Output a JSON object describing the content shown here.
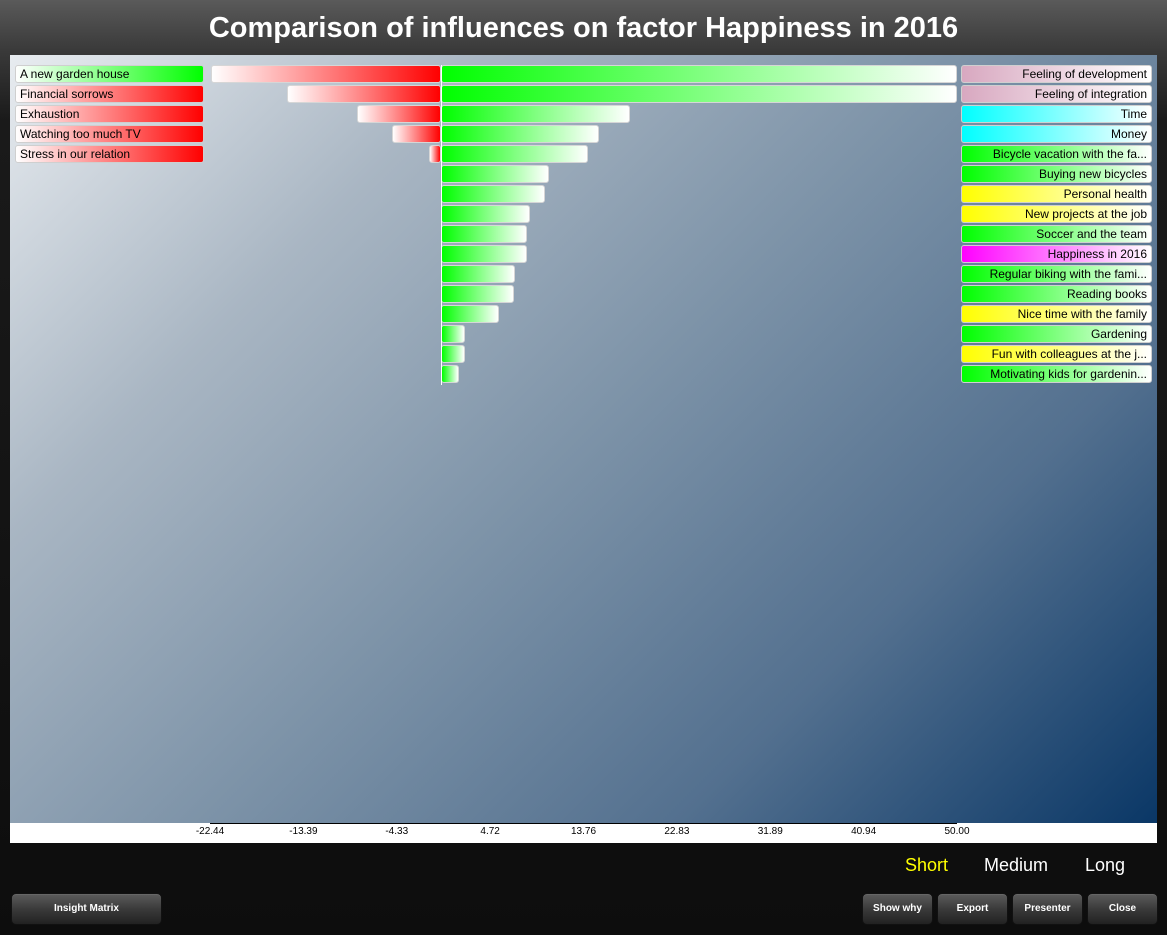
{
  "title": "Comparison of influences on factor Happiness in 2016",
  "chart_data": {
    "type": "bar",
    "title": "Comparison of influences on factor Happiness in 2016",
    "xlim": [
      -22.44,
      50.0
    ],
    "ticks": [
      "-22.44",
      "-13.39",
      "-4.33",
      "4.72",
      "13.76",
      "22.83",
      "31.89",
      "40.94",
      "50.00"
    ],
    "negative_labels": [
      {
        "label": "A new garden house",
        "color": "#00ff00"
      },
      {
        "label": "Financial sorrows",
        "color": "#ff0000"
      },
      {
        "label": "Exhaustion",
        "color": "#ff0000"
      },
      {
        "label": "Watching too much TV",
        "color": "#ff0000"
      },
      {
        "label": "Stress in our relation",
        "color": "#ff0000"
      }
    ],
    "negative_values": [
      -22.3,
      -15.0,
      -8.2,
      -4.8,
      -1.2
    ],
    "positive_labels": [
      {
        "label": "Feeling of development",
        "color": "#d8a8c0"
      },
      {
        "label": "Feeling of integration",
        "color": "#d8a8c0"
      },
      {
        "label": "Time",
        "color": "#00ffff"
      },
      {
        "label": "Money",
        "color": "#00ffff"
      },
      {
        "label": "Bicycle vacation with the fa...",
        "color": "#00ff00"
      },
      {
        "label": "Buying new bicycles",
        "color": "#00ff00"
      },
      {
        "label": "Personal health",
        "color": "#ffff00"
      },
      {
        "label": "New projects at the job",
        "color": "#ffff00"
      },
      {
        "label": "Soccer and the team",
        "color": "#00ff00"
      },
      {
        "label": "Happiness in 2016",
        "color": "#ff00ff"
      },
      {
        "label": "Regular biking with the fami...",
        "color": "#00ff00"
      },
      {
        "label": "Reading books",
        "color": "#00ff00"
      },
      {
        "label": "Nice time with the family",
        "color": "#ffff00"
      },
      {
        "label": "Gardening",
        "color": "#00ff00"
      },
      {
        "label": "Fun with colleagues at the j...",
        "color": "#ffff00"
      },
      {
        "label": "Motivating kids for gardenin...",
        "color": "#00ff00"
      }
    ],
    "positive_values": [
      50.0,
      50.0,
      18.3,
      15.3,
      14.2,
      10.4,
      10.0,
      8.6,
      8.3,
      8.3,
      7.1,
      7.0,
      5.6,
      2.3,
      2.3,
      1.7
    ],
    "colors": {
      "positive": "#00ff00",
      "negative": "#ff0000"
    }
  },
  "terms": {
    "short": "Short",
    "medium": "Medium",
    "long": "Long",
    "active_color": "#ffff00"
  },
  "buttons": {
    "insight_matrix": "Insight Matrix",
    "show_why": "Show why",
    "export": "Export",
    "presenter": "Presenter",
    "close": "Close"
  }
}
